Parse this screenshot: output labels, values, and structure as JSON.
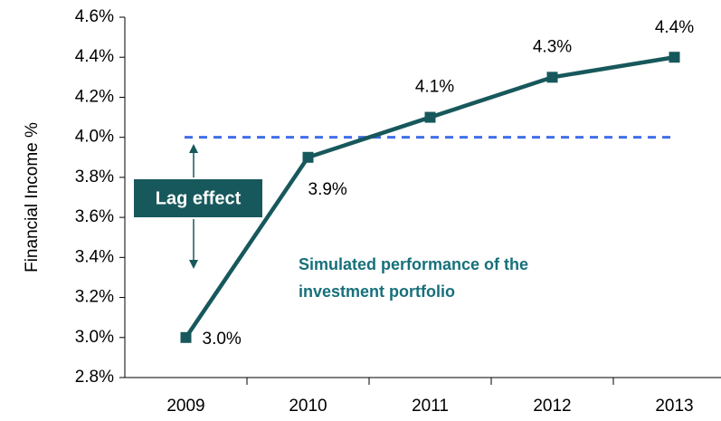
{
  "chart_data": {
    "type": "line",
    "y_axis_label": "Financial Income %",
    "categories": [
      "2009",
      "2010",
      "2011",
      "2012",
      "2013"
    ],
    "series": [
      {
        "name": "Simulated performance of the investment portfolio",
        "color": "#17585c",
        "values": [
          3.0,
          3.9,
          4.1,
          4.3,
          4.4
        ],
        "value_labels": [
          "3.0%",
          "3.9%",
          "4.1%",
          "4.3%",
          "4.4%"
        ]
      }
    ],
    "reference_line": {
      "value": 4.0,
      "color": "#3f6fe8"
    },
    "annotations": [
      "Lag effect",
      "Simulated performance of the",
      "investment portfolio"
    ],
    "ylim": [
      2.8,
      4.6
    ],
    "yticks": [
      {
        "value": 2.8,
        "label": "2.8%"
      },
      {
        "value": 3.0,
        "label": "3.0%"
      },
      {
        "value": 3.2,
        "label": "3.2%"
      },
      {
        "value": 3.4,
        "label": "3.4%"
      },
      {
        "value": 3.6,
        "label": "3.6%"
      },
      {
        "value": 3.8,
        "label": "3.8%"
      },
      {
        "value": 4.0,
        "label": "4.0%"
      },
      {
        "value": 4.2,
        "label": "4.2%"
      },
      {
        "value": 4.4,
        "label": "4.4%"
      },
      {
        "value": 4.6,
        "label": "4.6%"
      }
    ]
  }
}
